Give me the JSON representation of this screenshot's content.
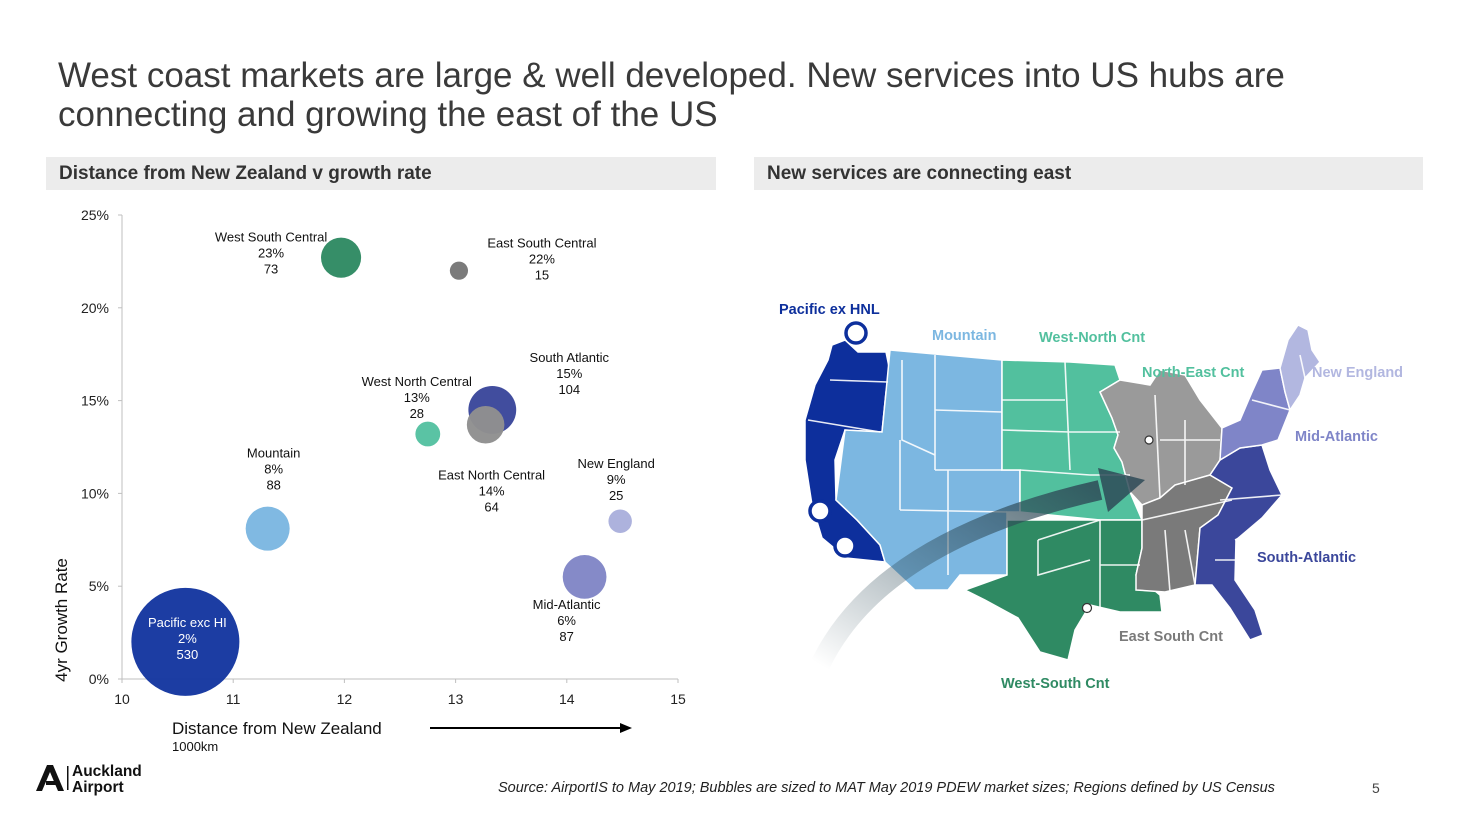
{
  "title_line1": "West coast markets are large & well developed. New services into US hubs are",
  "title_line2": "connecting and growing the east of the US",
  "left_panel_title": "Distance from New Zealand v growth rate",
  "right_panel_title": "New services are connecting east",
  "chart_data": {
    "type": "scatter",
    "variant": "bubble",
    "xlabel": "Distance from New Zealand",
    "xunit": "1000km",
    "ylabel": "4yr Growth Rate",
    "xlim": [
      10,
      15
    ],
    "ylim": [
      0,
      0.25
    ],
    "xticks": [
      "10",
      "11",
      "12",
      "13",
      "14",
      "15"
    ],
    "yticks": [
      "0%",
      "5%",
      "10%",
      "15%",
      "20%",
      "25%"
    ],
    "grid": false,
    "legend": "none",
    "points": [
      {
        "name": "West South Central",
        "growth_label": "23%",
        "size_label": "73",
        "x": 11.97,
        "y": 0.227,
        "size": 73,
        "color": "#2f8a63"
      },
      {
        "name": "East South Central",
        "growth_label": "22%",
        "size_label": "15",
        "x": 13.03,
        "y": 0.22,
        "size": 15,
        "color": "#777777"
      },
      {
        "name": "South Atlantic",
        "growth_label": "15%",
        "size_label": "104",
        "x": 13.33,
        "y": 0.145,
        "size": 104,
        "color": "#3b479b"
      },
      {
        "name": "West North Central",
        "growth_label": "13%",
        "size_label": "28",
        "x": 12.75,
        "y": 0.132,
        "size": 28,
        "color": "#55c1a1"
      },
      {
        "name": "East North Central",
        "growth_label": "14%",
        "size_label": "64",
        "x": 13.27,
        "y": 0.137,
        "size": 64,
        "color": "#8f8f8f"
      },
      {
        "name": "Mountain",
        "growth_label": "8%",
        "size_label": "88",
        "x": 11.31,
        "y": 0.081,
        "size": 88,
        "color": "#7cb7e1"
      },
      {
        "name": "New England",
        "growth_label": "9%",
        "size_label": "25",
        "x": 14.48,
        "y": 0.085,
        "size": 25,
        "color": "#aab0dc"
      },
      {
        "name": "Mid-Atlantic",
        "growth_label": "6%",
        "size_label": "87",
        "x": 14.16,
        "y": 0.055,
        "size": 87,
        "color": "#8186c6"
      },
      {
        "name": "Pacific exc HI",
        "growth_label": "2%",
        "size_label": "530",
        "x": 10.57,
        "y": 0.02,
        "size": 530,
        "color": "#1537a0"
      }
    ]
  },
  "map": {
    "labels": {
      "pacific": "Pacific ex HNL",
      "mountain": "Mountain",
      "west_north": "West-North Cnt",
      "north_east": "North-East Cnt",
      "new_england": "New England",
      "mid_atlantic": "Mid-Atlantic",
      "south_atlantic": "South-Atlantic",
      "east_south": "East South Cnt",
      "west_south": "West-South Cnt"
    },
    "colors": {
      "pacific": "#0d2f9c",
      "mountain": "#7cb7e1",
      "west_north": "#52c09e",
      "west_south": "#2f8a63",
      "north_east": "#9a9a9a",
      "east_south": "#7a7a7a",
      "south_atlantic": "#3b479b",
      "mid_atlantic": "#7f85c8",
      "new_england": "#b2b7e0"
    }
  },
  "footer": {
    "source": "Source: AirportIS to May 2019; Bubbles are sized to MAT May 2019 PDEW market sizes; Regions defined by US Census",
    "page_number": "5",
    "logo_line1": "Auckland",
    "logo_line2": "Airport"
  }
}
